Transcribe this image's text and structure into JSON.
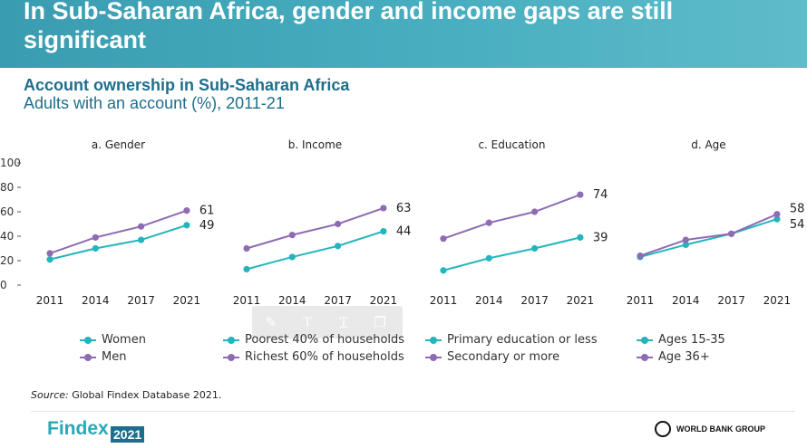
{
  "header": {
    "title": "In Sub-Saharan Africa, gender and income gaps are still significant",
    "subtitle": "Account ownership in Sub-Saharan Africa",
    "subtitle2": "Adults with an account (%), 2011-21"
  },
  "colors": {
    "teal": "#22b5bd",
    "purple": "#8e6bb3",
    "title_blue": "#1d6e8c",
    "banner": "#48aec0"
  },
  "toolbar": {
    "icons": [
      "pen-icon",
      "text-icon",
      "text-outline-icon",
      "copy-icon"
    ]
  },
  "chart_data": {
    "type": "line",
    "y_ticks": [
      "0",
      "20",
      "40",
      "60",
      "80",
      "100"
    ],
    "ylim": [
      0,
      100
    ],
    "x": [
      "2011",
      "2014",
      "2017",
      "2021"
    ],
    "panels": [
      {
        "title": "a. Gender",
        "series": [
          {
            "name": "Women",
            "color": "#22b5bd",
            "values": [
              21,
              30,
              37,
              49
            ],
            "end_label": "49"
          },
          {
            "name": "Men",
            "color": "#8e6bb3",
            "values": [
              26,
              39,
              48,
              61
            ],
            "end_label": "61"
          }
        ]
      },
      {
        "title": "b. Income",
        "series": [
          {
            "name": "Poorest 40% of households",
            "color": "#22b5bd",
            "values": [
              13,
              23,
              32,
              44
            ],
            "end_label": "44"
          },
          {
            "name": "Richest 60% of households",
            "color": "#8e6bb3",
            "values": [
              30,
              41,
              50,
              63
            ],
            "end_label": "63"
          }
        ]
      },
      {
        "title": "c. Education",
        "series": [
          {
            "name": "Primary education or less",
            "color": "#22b5bd",
            "values": [
              12,
              22,
              30,
              39
            ],
            "end_label": "39"
          },
          {
            "name": "Secondary or more",
            "color": "#8e6bb3",
            "values": [
              38,
              51,
              60,
              74
            ],
            "end_label": "74"
          }
        ]
      },
      {
        "title": "d. Age",
        "series": [
          {
            "name": "Ages 15-35",
            "color": "#22b5bd",
            "values": [
              23,
              33,
              42,
              54
            ],
            "end_label": "54"
          },
          {
            "name": "Age 36+",
            "color": "#8e6bb3",
            "values": [
              24,
              37,
              42,
              58
            ],
            "end_label": "58"
          }
        ]
      }
    ]
  },
  "footer": {
    "source_label": "Source:",
    "source_text": " Global Findex Database 2021.",
    "brand": "Findex",
    "brand_year": "2021",
    "wbg": "WORLD BANK GROUP"
  }
}
